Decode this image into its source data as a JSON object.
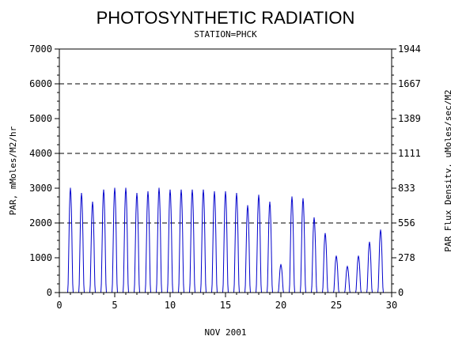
{
  "chart_data": {
    "type": "line",
    "title": "PHOTOSYNTHETIC RADIATION",
    "subtitle": "STATION=PHCK",
    "xlabel": "NOV 2001",
    "ylabel": "PAR, mMoles/M2/hr",
    "ylabel_right": "PAR Flux Density, uMoles/sec/M2",
    "xlim": [
      0,
      30
    ],
    "ylim": [
      0,
      7000
    ],
    "x_ticks": [
      "0",
      "5",
      "10",
      "15",
      "20",
      "25",
      "30"
    ],
    "y_ticks": [
      "0",
      "1000",
      "2000",
      "3000",
      "4000",
      "5000",
      "6000",
      "7000"
    ],
    "y_ticks_right": [
      "0",
      "278",
      "556",
      "833",
      "1111",
      "1389",
      "1667",
      "1944"
    ],
    "grid_lines_y": [
      2000,
      4000,
      6000
    ],
    "series_color": "#0000cc",
    "series": [
      {
        "daily_peaks": [
          {
            "day": 1,
            "peak": 3000
          },
          {
            "day": 2,
            "peak": 2850
          },
          {
            "day": 3,
            "peak": 2600
          },
          {
            "day": 4,
            "peak": 2950
          },
          {
            "day": 5,
            "peak": 3000
          },
          {
            "day": 6,
            "peak": 3000
          },
          {
            "day": 7,
            "peak": 2850
          },
          {
            "day": 8,
            "peak": 2900
          },
          {
            "day": 9,
            "peak": 3000
          },
          {
            "day": 10,
            "peak": 2950
          },
          {
            "day": 11,
            "peak": 2950
          },
          {
            "day": 12,
            "peak": 2950
          },
          {
            "day": 13,
            "peak": 2950
          },
          {
            "day": 14,
            "peak": 2900
          },
          {
            "day": 15,
            "peak": 2900
          },
          {
            "day": 16,
            "peak": 2850
          },
          {
            "day": 17,
            "peak": 2500
          },
          {
            "day": 18,
            "peak": 2800
          },
          {
            "day": 19,
            "peak": 2600
          },
          {
            "day": 20,
            "peak": 800
          },
          {
            "day": 21,
            "peak": 2750
          },
          {
            "day": 22,
            "peak": 2700
          },
          {
            "day": 23,
            "peak": 2150
          },
          {
            "day": 24,
            "peak": 1700
          },
          {
            "day": 25,
            "peak": 1050
          },
          {
            "day": 26,
            "peak": 750
          },
          {
            "day": 27,
            "peak": 1050
          },
          {
            "day": 28,
            "peak": 1450
          },
          {
            "day": 29,
            "peak": 1800
          }
        ]
      }
    ]
  }
}
